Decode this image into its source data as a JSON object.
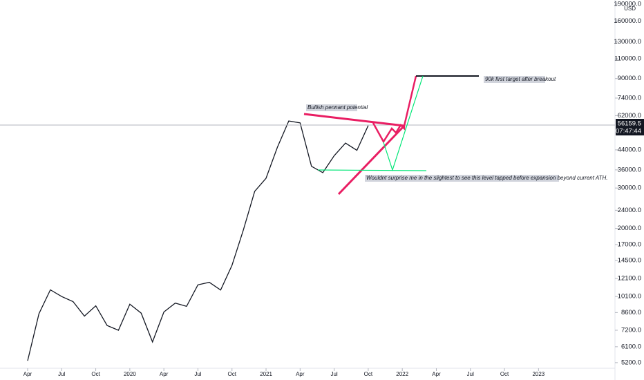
{
  "chart_data": {
    "type": "line",
    "currency": "USD",
    "log_scale": true,
    "current_price": 56159.5,
    "current_price_label": "56159.5",
    "countdown": "07:47:44",
    "annotations": [
      "Bullish pennant potential",
      "90k first target after breakout",
      "Wouldnt surprise me in the slightest to see this level tapped before expansion beyond current ATH."
    ],
    "x": [
      "2019-04",
      "2019-05",
      "2019-06",
      "2019-07",
      "2019-08",
      "2019-09",
      "2019-10",
      "2019-11",
      "2019-12",
      "2020-01",
      "2020-02",
      "2020-03",
      "2020-04",
      "2020-05",
      "2020-06",
      "2020-07",
      "2020-08",
      "2020-09",
      "2020-10",
      "2020-11",
      "2020-12",
      "2021-01",
      "2021-02",
      "2021-03",
      "2021-04",
      "2021-05",
      "2021-06",
      "2021-07",
      "2021-08",
      "2021-09",
      "2021-10"
    ],
    "series": [
      {
        "color": "#131722",
        "values": [
          5300,
          8500,
          10800,
          10100,
          9600,
          8300,
          9200,
          7550,
          7200,
          9350,
          8550,
          6400,
          8650,
          9450,
          9150,
          11350,
          11650,
          10780,
          13800,
          19700,
          29000,
          33100,
          45200,
          58800,
          57700,
          37300,
          35000,
          41500,
          47100,
          43800,
          56159.5
        ]
      }
    ],
    "xticks": [
      {
        "value": "2019-04",
        "label": "Apr"
      },
      {
        "value": "2019-07",
        "label": "Jul"
      },
      {
        "value": "2019-10",
        "label": "Oct"
      },
      {
        "value": "2020-01",
        "label": "2020"
      },
      {
        "value": "2020-04",
        "label": "Apr"
      },
      {
        "value": "2020-07",
        "label": "Jul"
      },
      {
        "value": "2020-10",
        "label": "Oct"
      },
      {
        "value": "2021-01",
        "label": "2021"
      },
      {
        "value": "2021-04",
        "label": "Apr"
      },
      {
        "value": "2021-07",
        "label": "Jul"
      },
      {
        "value": "2021-10",
        "label": "Oct"
      },
      {
        "value": "2022-01",
        "label": "2022"
      },
      {
        "value": "2022-04",
        "label": "Apr"
      },
      {
        "value": "2022-07",
        "label": "Jul"
      },
      {
        "value": "2022-10",
        "label": "Oct"
      },
      {
        "value": "2023-01",
        "label": "2023"
      }
    ],
    "ylim": [
      4950,
      198000
    ],
    "yticks": [
      {
        "value": 190000,
        "label": "190000.0"
      },
      {
        "value": 160000,
        "label": "160000.0"
      },
      {
        "value": 130000,
        "label": "130000.0"
      },
      {
        "value": 110000,
        "label": "110000.0"
      },
      {
        "value": 90000,
        "label": "90000.0"
      },
      {
        "value": 74000,
        "label": "74000.0"
      },
      {
        "value": 62000,
        "label": "62000.0"
      },
      {
        "value": 44000,
        "label": "44000.0"
      },
      {
        "value": 36000,
        "label": "36000.0"
      },
      {
        "value": 30000,
        "label": "30000.0"
      },
      {
        "value": 24000,
        "label": "24000.0"
      },
      {
        "value": 20000,
        "label": "20000.0"
      },
      {
        "value": 17000,
        "label": "17000.0"
      },
      {
        "value": 14500,
        "label": "14500.0"
      },
      {
        "value": 12100,
        "label": "12100.0"
      },
      {
        "value": 10100,
        "label": "10100.0"
      },
      {
        "value": 8600,
        "label": "8600.0"
      },
      {
        "value": 7200,
        "label": "7200.0"
      },
      {
        "value": 6100,
        "label": "6100.0"
      },
      {
        "value": 5200,
        "label": "5200.0"
      }
    ]
  }
}
